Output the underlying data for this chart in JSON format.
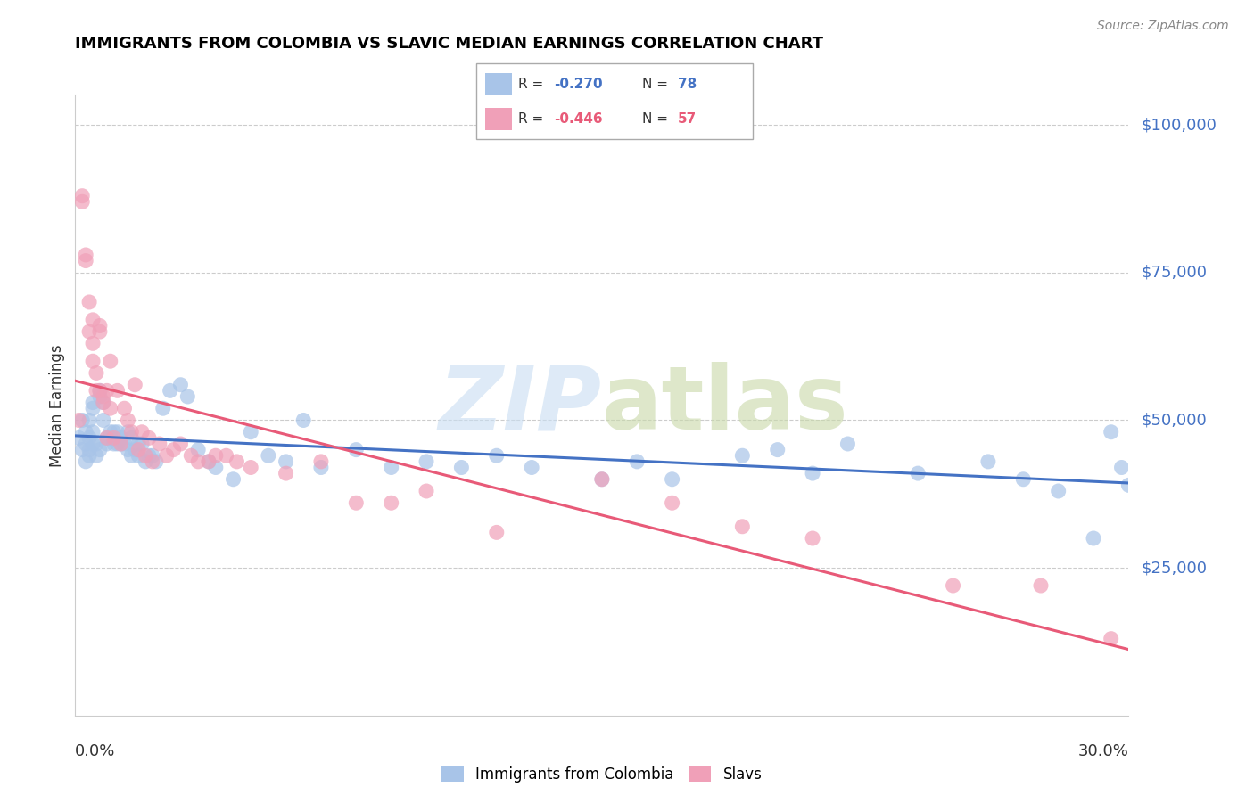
{
  "title": "IMMIGRANTS FROM COLOMBIA VS SLAVIC MEDIAN EARNINGS CORRELATION CHART",
  "source": "Source: ZipAtlas.com",
  "ylabel": "Median Earnings",
  "x_range": [
    0.0,
    0.3
  ],
  "y_range": [
    0,
    105000
  ],
  "colombia_R": -0.27,
  "colombia_N": 78,
  "slavic_R": -0.446,
  "slavic_N": 57,
  "colombia_color": "#a8c4e8",
  "slavic_color": "#f0a0b8",
  "colombia_line_color": "#4472c4",
  "slavic_line_color": "#e85a78",
  "colombia_x": [
    0.001,
    0.002,
    0.002,
    0.003,
    0.003,
    0.003,
    0.004,
    0.004,
    0.004,
    0.004,
    0.005,
    0.005,
    0.005,
    0.005,
    0.006,
    0.006,
    0.007,
    0.007,
    0.007,
    0.008,
    0.008,
    0.009,
    0.009,
    0.01,
    0.01,
    0.011,
    0.011,
    0.012,
    0.012,
    0.013,
    0.013,
    0.014,
    0.015,
    0.015,
    0.016,
    0.016,
    0.017,
    0.018,
    0.018,
    0.019,
    0.02,
    0.021,
    0.022,
    0.023,
    0.025,
    0.027,
    0.03,
    0.032,
    0.035,
    0.038,
    0.04,
    0.045,
    0.05,
    0.055,
    0.06,
    0.065,
    0.07,
    0.08,
    0.09,
    0.1,
    0.11,
    0.12,
    0.13,
    0.15,
    0.16,
    0.17,
    0.19,
    0.2,
    0.21,
    0.22,
    0.24,
    0.26,
    0.27,
    0.28,
    0.29,
    0.295,
    0.298,
    0.3
  ],
  "colombia_y": [
    47000,
    45000,
    50000,
    43000,
    46000,
    48000,
    45000,
    44000,
    47000,
    50000,
    53000,
    48000,
    46000,
    52000,
    46000,
    44000,
    54000,
    55000,
    45000,
    50000,
    53000,
    46000,
    47000,
    48000,
    47000,
    46000,
    48000,
    46000,
    48000,
    46000,
    47000,
    46000,
    45000,
    48000,
    44000,
    47000,
    45000,
    44000,
    46000,
    46000,
    43000,
    44000,
    44000,
    43000,
    52000,
    55000,
    56000,
    54000,
    45000,
    43000,
    42000,
    40000,
    48000,
    44000,
    43000,
    50000,
    42000,
    45000,
    42000,
    43000,
    42000,
    44000,
    42000,
    40000,
    43000,
    40000,
    44000,
    45000,
    41000,
    46000,
    41000,
    43000,
    40000,
    38000,
    30000,
    48000,
    42000,
    39000
  ],
  "slavic_x": [
    0.001,
    0.002,
    0.002,
    0.003,
    0.003,
    0.004,
    0.004,
    0.005,
    0.005,
    0.005,
    0.006,
    0.006,
    0.007,
    0.007,
    0.007,
    0.008,
    0.008,
    0.009,
    0.009,
    0.01,
    0.01,
    0.011,
    0.012,
    0.013,
    0.014,
    0.015,
    0.016,
    0.017,
    0.018,
    0.019,
    0.02,
    0.021,
    0.022,
    0.024,
    0.026,
    0.028,
    0.03,
    0.033,
    0.035,
    0.038,
    0.04,
    0.043,
    0.046,
    0.05,
    0.06,
    0.07,
    0.08,
    0.09,
    0.1,
    0.12,
    0.15,
    0.17,
    0.19,
    0.21,
    0.25,
    0.275,
    0.295
  ],
  "slavic_y": [
    50000,
    88000,
    87000,
    78000,
    77000,
    70000,
    65000,
    63000,
    67000,
    60000,
    55000,
    58000,
    65000,
    55000,
    66000,
    54000,
    53000,
    55000,
    47000,
    60000,
    52000,
    47000,
    55000,
    46000,
    52000,
    50000,
    48000,
    56000,
    45000,
    48000,
    44000,
    47000,
    43000,
    46000,
    44000,
    45000,
    46000,
    44000,
    43000,
    43000,
    44000,
    44000,
    43000,
    42000,
    41000,
    43000,
    36000,
    36000,
    38000,
    31000,
    40000,
    36000,
    32000,
    30000,
    22000,
    22000,
    13000
  ]
}
